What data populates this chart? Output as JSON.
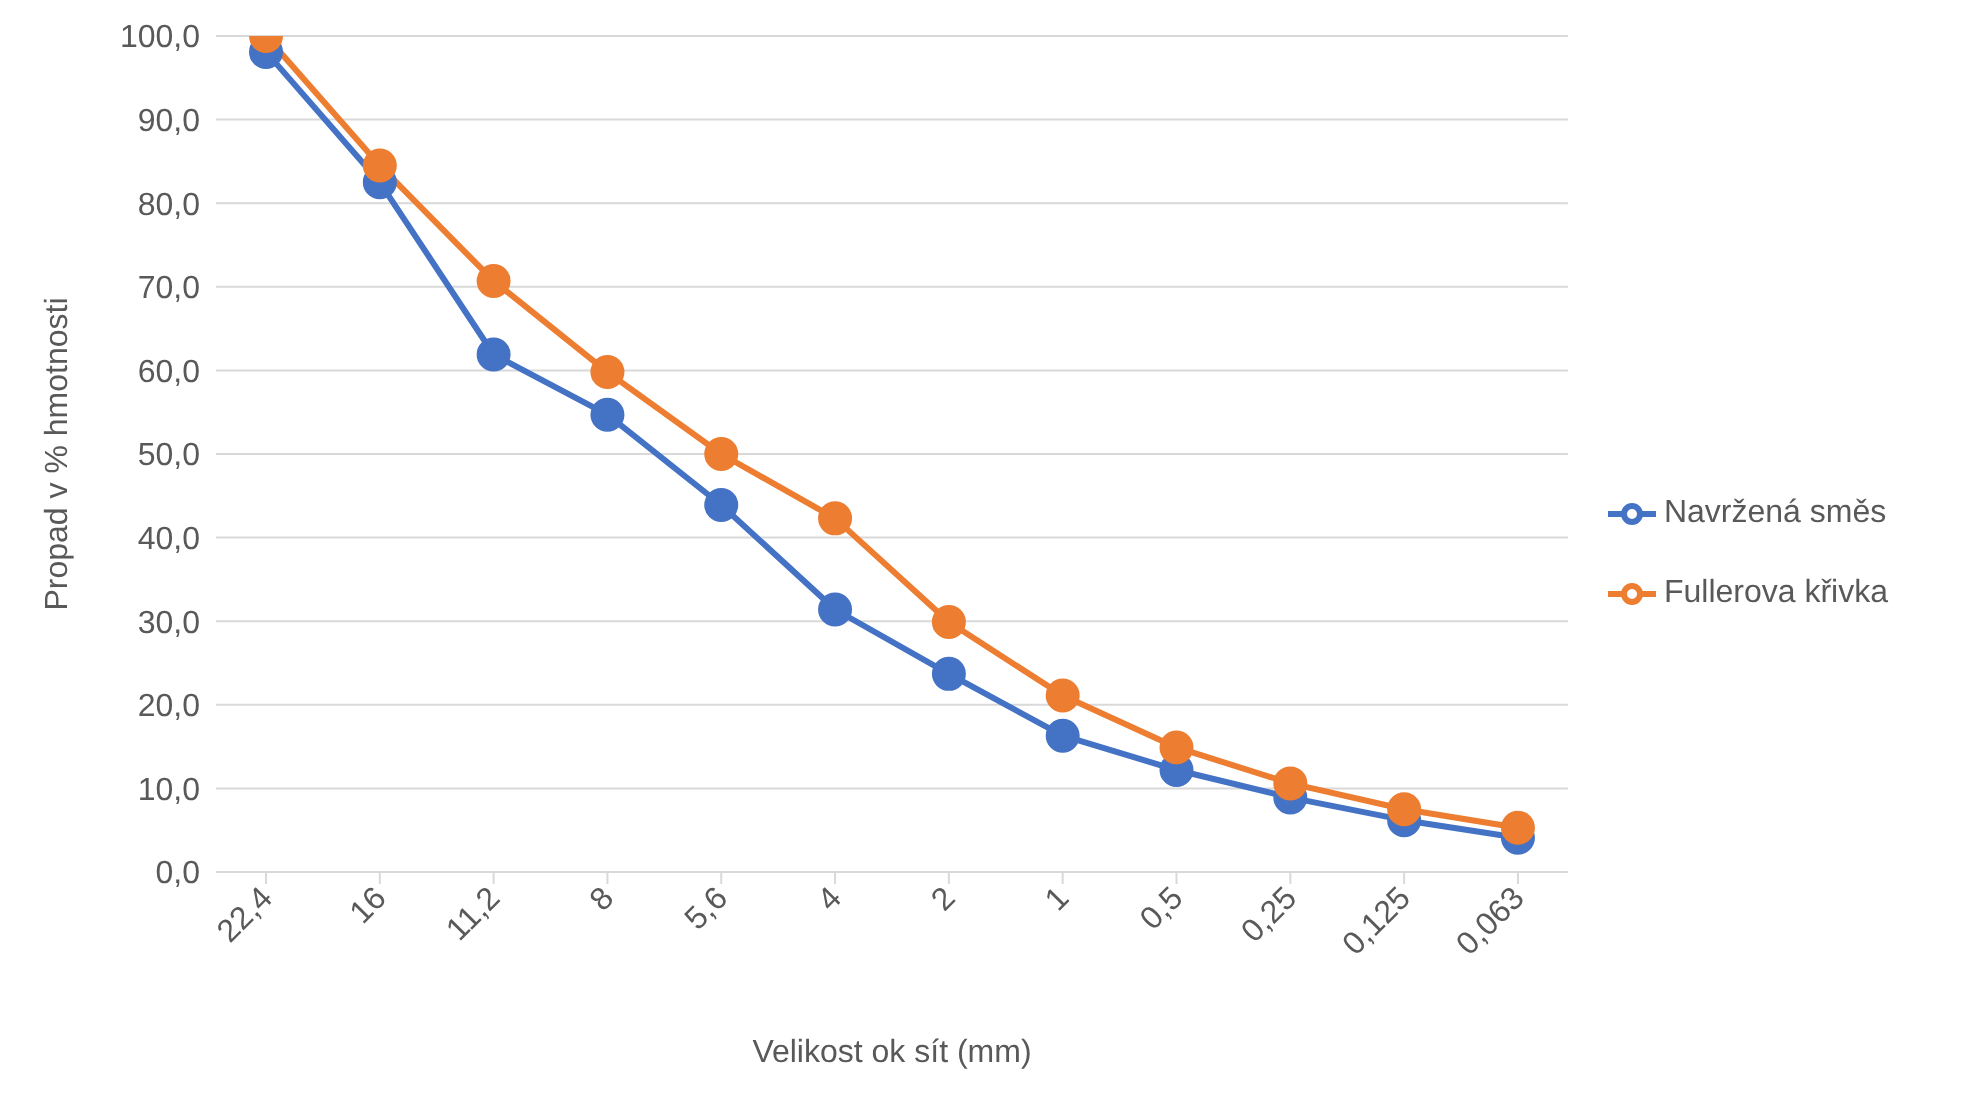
{
  "chart_data": {
    "type": "line",
    "xlabel": "Velikost ok sít (mm)",
    "ylabel": "Propad v % hmotnosti",
    "categories": [
      "22,4",
      "16",
      "11,2",
      "8",
      "5,6",
      "4",
      "2",
      "1",
      "0,5",
      "0,25",
      "0,125",
      "0,063"
    ],
    "series": [
      {
        "name": "Navržená směs",
        "color": "#4472c4",
        "values": [
          98.1,
          82.5,
          61.9,
          54.7,
          43.9,
          31.4,
          23.7,
          16.3,
          12.2,
          8.9,
          6.2,
          4.1
        ]
      },
      {
        "name": "Fullerova křivka",
        "color": "#ed7d31",
        "values": [
          100,
          84.5,
          70.7,
          59.8,
          50,
          42.3,
          29.9,
          21.1,
          14.9,
          10.6,
          7.5,
          5.3
        ]
      }
    ],
    "ylim": [
      0,
      100
    ],
    "yticks": [
      {
        "value": 0,
        "label": "0,0"
      },
      {
        "value": 10,
        "label": "10,0"
      },
      {
        "value": 20,
        "label": "20,0"
      },
      {
        "value": 30,
        "label": "30,0"
      },
      {
        "value": 40,
        "label": "40,0"
      },
      {
        "value": 50,
        "label": "50,0"
      },
      {
        "value": 60,
        "label": "60,0"
      },
      {
        "value": 70,
        "label": "70,0"
      },
      {
        "value": 80,
        "label": "80,0"
      },
      {
        "value": 90,
        "label": "90,0"
      },
      {
        "value": 100,
        "label": "100,0"
      }
    ],
    "grid": "y",
    "legend": "right",
    "marker": "circle",
    "line_style": "solid"
  }
}
